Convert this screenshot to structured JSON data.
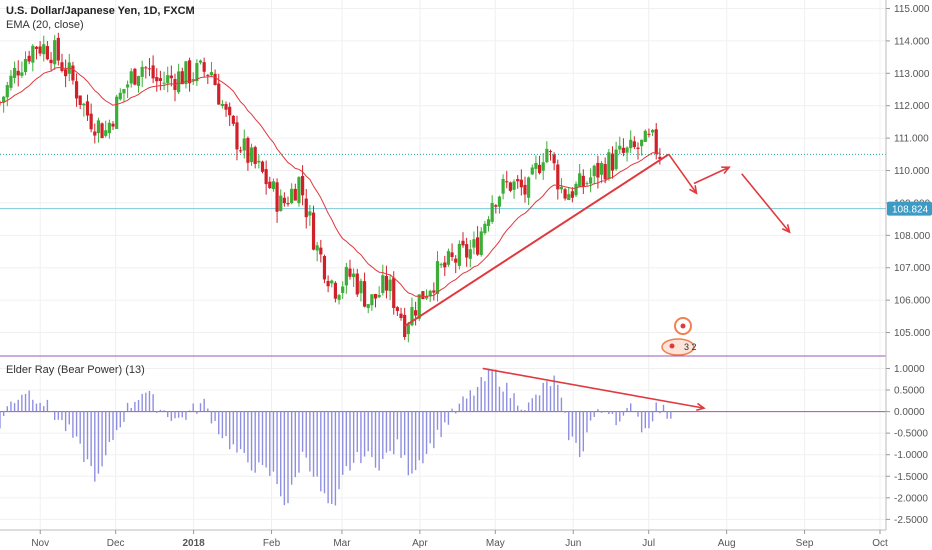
{
  "chart_title": "U.S. Dollar/Japanese Yen, 1D, FXCM",
  "ema_label": "EMA (20, close)",
  "oscillator_label": "Elder Ray (Bear Power) (13)",
  "colors": {
    "bull": "#3cae37",
    "bear": "#d0202a",
    "ema": "#e0393e",
    "trend": "#e0393e",
    "bar": "#8f8fe0",
    "zero_line": "#9b59b6",
    "dotted_line": "#26a69a",
    "last_price_line": "#7ec8d8",
    "price_tag": "#3c9bc4",
    "grid": "#f0f0f0",
    "axis": "#555555"
  },
  "chart_data": [
    {
      "type": "candlestick",
      "title": "U.S. Dollar/Japanese Yen, 1D, FXCM",
      "series_name": "EMA (20, close)",
      "ylim": [
        104.4,
        115.2
      ],
      "yticks": [
        "115.000",
        "114.000",
        "113.000",
        "112.000",
        "111.000",
        "110.000",
        "109.000",
        "108.000",
        "107.000",
        "106.000",
        "105.000"
      ],
      "last_price": "108.824",
      "dotted_level": 110.5,
      "x_range": [
        "2017-10-16",
        "2018-10-01"
      ],
      "x_tick_labels": [
        {
          "label": "Nov",
          "date": "2017-11-01"
        },
        {
          "label": "Dec",
          "date": "2017-12-01"
        },
        {
          "label": "2018",
          "date": "2018-01-01"
        },
        {
          "label": "Feb",
          "date": "2018-02-01"
        },
        {
          "label": "Mar",
          "date": "2018-03-01"
        },
        {
          "label": "Apr",
          "date": "2018-04-01"
        },
        {
          "label": "May",
          "date": "2018-05-01"
        },
        {
          "label": "Jun",
          "date": "2018-06-01"
        },
        {
          "label": "Jul",
          "date": "2018-07-01"
        },
        {
          "label": "Aug",
          "date": "2018-08-01"
        },
        {
          "label": "Sep",
          "date": "2018-09-01"
        },
        {
          "label": "Oct",
          "date": "2018-10-01"
        }
      ],
      "price_path": [
        [
          "2017-10-16",
          112.1
        ],
        [
          "2017-10-23",
          113.2
        ],
        [
          "2017-10-30",
          113.9
        ],
        [
          "2017-11-06",
          113.7
        ],
        [
          "2017-11-13",
          112.9
        ],
        [
          "2017-11-20",
          111.7
        ],
        [
          "2017-11-27",
          111.2
        ],
        [
          "2017-12-04",
          112.5
        ],
        [
          "2017-12-11",
          113.3
        ],
        [
          "2017-12-18",
          112.7
        ],
        [
          "2017-12-25",
          112.9
        ],
        [
          "2018-01-08",
          113.1
        ],
        [
          "2018-01-15",
          111.4
        ],
        [
          "2018-01-22",
          110.5
        ],
        [
          "2018-01-29",
          109.8
        ],
        [
          "2018-02-05",
          108.9
        ],
        [
          "2018-02-12",
          109.7
        ],
        [
          "2018-02-19",
          107.6
        ],
        [
          "2018-02-26",
          106.4
        ],
        [
          "2018-03-05",
          106.8
        ],
        [
          "2018-03-12",
          105.9
        ],
        [
          "2018-03-19",
          106.5
        ],
        [
          "2018-03-26",
          105.3
        ],
        [
          "2018-04-02",
          106.2
        ],
        [
          "2018-04-09",
          106.9
        ],
        [
          "2018-04-16",
          107.3
        ],
        [
          "2018-04-23",
          107.6
        ],
        [
          "2018-04-30",
          109.2
        ],
        [
          "2018-05-07",
          109.6
        ],
        [
          "2018-05-14",
          109.3
        ],
        [
          "2018-05-21",
          110.8
        ],
        [
          "2018-05-28",
          109.3
        ],
        [
          "2018-06-04",
          109.5
        ],
        [
          "2018-06-11",
          110.0
        ],
        [
          "2018-06-18",
          110.4
        ],
        [
          "2018-06-25",
          110.6
        ],
        [
          "2018-07-02",
          110.9
        ],
        [
          "2018-07-06",
          110.5
        ]
      ],
      "trendlines": [
        {
          "from": [
            "2018-03-26",
            105.2
          ],
          "to": [
            "2018-07-09",
            110.5
          ]
        }
      ],
      "projection_arrows": [
        {
          "from": [
            "2018-07-09",
            110.5
          ],
          "to": [
            "2018-07-20",
            109.3
          ]
        },
        {
          "from": [
            "2018-07-19",
            109.6
          ],
          "to": [
            "2018-08-02",
            110.1
          ]
        },
        {
          "from": [
            "2018-08-07",
            109.9
          ],
          "to": [
            "2018-08-26",
            108.1
          ]
        }
      ]
    },
    {
      "type": "bar",
      "title": "Elder Ray (Bear Power) (13)",
      "ylim": [
        -2.7,
        1.15
      ],
      "yticks": [
        "1.0000",
        "0.5000",
        "0.0000",
        "-0.5000",
        "-1.0000",
        "-1.5000",
        "-2.0000",
        "-2.5000"
      ],
      "bear_power_path": [
        [
          "2017-10-16",
          -0.3
        ],
        [
          "2017-10-20",
          0.2
        ],
        [
          "2017-10-26",
          0.5
        ],
        [
          "2017-11-01",
          0.3
        ],
        [
          "2017-11-07",
          -0.1
        ],
        [
          "2017-11-13",
          -0.5
        ],
        [
          "2017-11-18",
          -1.0
        ],
        [
          "2017-11-24",
          -1.6
        ],
        [
          "2017-11-30",
          -0.6
        ],
        [
          "2017-12-06",
          0.1
        ],
        [
          "2017-12-12",
          0.5
        ],
        [
          "2017-12-18",
          0.1
        ],
        [
          "2017-12-26",
          -0.2
        ],
        [
          "2018-01-05",
          0.2
        ],
        [
          "2018-01-12",
          -0.5
        ],
        [
          "2018-01-19",
          -1.0
        ],
        [
          "2018-01-26",
          -1.3
        ],
        [
          "2018-02-02",
          -1.5
        ],
        [
          "2018-02-07",
          -2.2
        ],
        [
          "2018-02-14",
          -0.9
        ],
        [
          "2018-02-21",
          -1.9
        ],
        [
          "2018-02-26",
          -2.4
        ],
        [
          "2018-03-02",
          -1.4
        ],
        [
          "2018-03-09",
          -1.0
        ],
        [
          "2018-03-16",
          -1.2
        ],
        [
          "2018-03-23",
          -0.8
        ],
        [
          "2018-03-28",
          -1.4
        ],
        [
          "2018-04-04",
          -0.9
        ],
        [
          "2018-04-11",
          -0.3
        ],
        [
          "2018-04-18",
          0.2
        ],
        [
          "2018-04-25",
          0.6
        ],
        [
          "2018-04-30",
          0.95
        ],
        [
          "2018-05-07",
          0.4
        ],
        [
          "2018-05-14",
          0.1
        ],
        [
          "2018-05-21",
          0.6
        ],
        [
          "2018-05-25",
          0.75
        ],
        [
          "2018-05-30",
          -0.5
        ],
        [
          "2018-06-04",
          -1.0
        ],
        [
          "2018-06-08",
          -0.2
        ],
        [
          "2018-06-15",
          0.1
        ],
        [
          "2018-06-20",
          -0.3
        ],
        [
          "2018-06-25",
          0.2
        ],
        [
          "2018-06-29",
          -0.5
        ],
        [
          "2018-07-04",
          0.1
        ],
        [
          "2018-07-10",
          -0.1
        ]
      ],
      "trendlines": [
        {
          "from": [
            "2018-04-26",
            1.0
          ],
          "to": [
            "2018-07-23",
            0.08
          ]
        }
      ]
    }
  ],
  "annotations": {
    "marker_text": "3 2"
  }
}
